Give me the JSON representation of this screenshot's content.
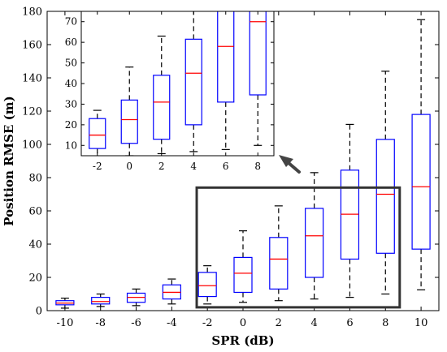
{
  "chart_data": [
    {
      "type": "box",
      "xlabel": "SPR (dB)",
      "ylabel": "Position RMSE (m)",
      "ylim": [
        0,
        180
      ],
      "xlim": [
        -11,
        11
      ],
      "xticks": [
        -10,
        -8,
        -6,
        -4,
        -2,
        0,
        2,
        4,
        6,
        8,
        10
      ],
      "yticks": [
        0,
        20,
        40,
        60,
        80,
        100,
        120,
        140,
        160,
        180
      ],
      "colors": {
        "box": "#0000ff",
        "median": "#ff0000",
        "whisker": "#000000",
        "highlight": "#333333"
      },
      "boxes": [
        {
          "x": -10,
          "whisker_low": 1.5,
          "q1": 3.5,
          "median": 4.5,
          "q3": 6,
          "whisker_high": 7.5
        },
        {
          "x": -8,
          "whisker_low": 2.5,
          "q1": 4,
          "median": 5.5,
          "q3": 8,
          "whisker_high": 10
        },
        {
          "x": -6,
          "whisker_low": 3,
          "q1": 5,
          "median": 8,
          "q3": 10.5,
          "whisker_high": 13
        },
        {
          "x": -4,
          "whisker_low": 4,
          "q1": 7,
          "median": 11,
          "q3": 15.5,
          "whisker_high": 19
        },
        {
          "x": -2,
          "whisker_low": 4,
          "q1": 8.5,
          "median": 15,
          "q3": 23,
          "whisker_high": 27
        },
        {
          "x": 0,
          "whisker_low": 5,
          "q1": 11,
          "median": 22.5,
          "q3": 32,
          "whisker_high": 48
        },
        {
          "x": 2,
          "whisker_low": 6,
          "q1": 13,
          "median": 31,
          "q3": 44,
          "whisker_high": 63
        },
        {
          "x": 4,
          "whisker_low": 7,
          "q1": 20,
          "median": 45,
          "q3": 61.5,
          "whisker_high": 83
        },
        {
          "x": 6,
          "whisker_low": 8,
          "q1": 31,
          "median": 58,
          "q3": 84.5,
          "whisker_high": 112
        },
        {
          "x": 8,
          "whisker_low": 10,
          "q1": 34.5,
          "median": 70,
          "q3": 103,
          "whisker_high": 144
        },
        {
          "x": 10,
          "whisker_low": 12.5,
          "q1": 37,
          "median": 74.5,
          "q3": 118,
          "whisker_high": 175
        }
      ],
      "highlight_region": {
        "x": [
          -2.6,
          8.8
        ],
        "y": [
          2,
          74
        ]
      }
    },
    {
      "type": "box",
      "role": "inset",
      "xlim": [
        -3,
        9
      ],
      "ylim": [
        5,
        75
      ],
      "xticks": [
        -2,
        0,
        2,
        4,
        6,
        8
      ],
      "yticks": [
        10,
        20,
        30,
        40,
        50,
        60,
        70
      ],
      "xs": [
        -2,
        0,
        2,
        4,
        6,
        8
      ]
    }
  ]
}
